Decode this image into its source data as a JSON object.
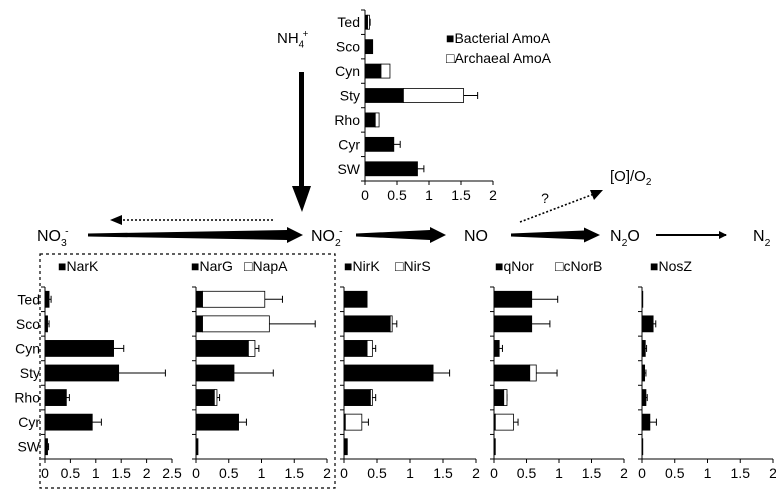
{
  "legend_marks": {
    "filled": "■",
    "open": "□"
  },
  "pathway": {
    "species": [
      {
        "main": "NO",
        "sub": "3",
        "sup": "-"
      },
      {
        "main": "NO",
        "sub": "2",
        "sup": "-"
      },
      {
        "main": "NO",
        "sub": "",
        "sup": ""
      },
      {
        "main": "N",
        "sub": "2",
        "sup": "",
        "tail": "O"
      },
      {
        "main": "N",
        "sub": "2",
        "sup": ""
      }
    ],
    "nh4": {
      "main": "NH",
      "sub": "4",
      "sup": "+"
    },
    "oxygen_label": "[O]/O",
    "oxygen_sub": "2",
    "question": "?"
  },
  "chart_data": [
    {
      "id": "amoA",
      "type": "bar",
      "orientation": "horizontal",
      "stacked": true,
      "categories": [
        "Ted",
        "Sco",
        "Cyn",
        "Sty",
        "Rho",
        "Cyr",
        "SW"
      ],
      "series": [
        {
          "name": "Bacterial AmoA",
          "fill": "#000000",
          "values": [
            0.04,
            0.12,
            0.25,
            0.6,
            0.16,
            0.45,
            0.82
          ],
          "err": [
            0.04,
            0,
            0.06,
            0.22,
            0.05,
            0.1,
            0.1
          ]
        },
        {
          "name": "Archaeal AmoA",
          "fill": "#ffffff",
          "values": [
            0.03,
            0,
            0.14,
            0.94,
            0.06,
            0,
            0
          ],
          "err": [
            0,
            0,
            0,
            0.22,
            0,
            0,
            0
          ]
        }
      ],
      "xlim": [
        0,
        2
      ],
      "ticks": [
        "0",
        "0.5",
        "1",
        "1.5",
        "2"
      ],
      "legend": "top-right"
    },
    {
      "id": "nark",
      "type": "bar",
      "orientation": "horizontal",
      "stacked": true,
      "categories": [
        "Ted",
        "Sco",
        "Cyn",
        "Sty",
        "Rho",
        "Cyr",
        "SW"
      ],
      "series": [
        {
          "name": "NarK",
          "fill": "#000000",
          "values": [
            0.08,
            0.05,
            1.35,
            1.45,
            0.42,
            0.93,
            0.05
          ],
          "err": [
            0.04,
            0.03,
            0.2,
            0.92,
            0.06,
            0.18,
            0.02
          ]
        }
      ],
      "xlim": [
        0,
        2.5
      ],
      "ticks": [
        "0",
        "0.5",
        "1",
        "1.5",
        "2",
        "2.5"
      ],
      "legend": "top"
    },
    {
      "id": "narg",
      "type": "bar",
      "orientation": "horizontal",
      "stacked": true,
      "categories": [
        "Ted",
        "Sco",
        "Cyn",
        "Sty",
        "Rho",
        "Cyr",
        "SW"
      ],
      "series": [
        {
          "name": "NarG",
          "fill": "#000000",
          "values": [
            0.1,
            0.1,
            0.8,
            0.58,
            0.28,
            0.65,
            0.03
          ],
          "err": [
            0,
            0,
            0,
            0.6,
            0,
            0.12,
            0
          ]
        },
        {
          "name": "NapA",
          "fill": "#ffffff",
          "values": [
            0.95,
            1.02,
            0.1,
            0,
            0.04,
            0,
            0
          ],
          "err": [
            0.27,
            0.7,
            0.06,
            0,
            0.04,
            0,
            0
          ]
        }
      ],
      "xlim": [
        0,
        2
      ],
      "ticks": [
        "0",
        "0.5",
        "1",
        "1.5",
        "2"
      ],
      "legend": "top"
    },
    {
      "id": "nirk",
      "type": "bar",
      "orientation": "horizontal",
      "stacked": true,
      "categories": [
        "Ted",
        "Sco",
        "Cyn",
        "Sty",
        "Rho",
        "Cyr",
        "SW"
      ],
      "series": [
        {
          "name": "NirK",
          "fill": "#000000",
          "values": [
            0.35,
            0.7,
            0.35,
            1.35,
            0.4,
            0.02,
            0.05
          ],
          "err": [
            0,
            0.1,
            0,
            0.25,
            0.08,
            0,
            0
          ]
        },
        {
          "name": "NirS",
          "fill": "#ffffff",
          "values": [
            0,
            0.03,
            0.08,
            0,
            0.03,
            0.25,
            0
          ],
          "err": [
            0,
            0,
            0.05,
            0,
            0,
            0.1,
            0
          ]
        }
      ],
      "xlim": [
        0,
        2
      ],
      "ticks": [
        "0",
        "0.5",
        "1",
        "1.5",
        "2"
      ],
      "legend": "top"
    },
    {
      "id": "qnor",
      "type": "bar",
      "orientation": "horizontal",
      "stacked": true,
      "categories": [
        "Ted",
        "Sco",
        "Cyn",
        "Sty",
        "Rho",
        "Cyr",
        "SW"
      ],
      "series": [
        {
          "name": "qNor",
          "fill": "#000000",
          "values": [
            0.58,
            0.58,
            0.08,
            0.55,
            0.15,
            0.02,
            0.02
          ],
          "err": [
            0.4,
            0.28,
            0.05,
            0.42,
            0.05,
            0,
            0
          ]
        },
        {
          "name": "cNorB",
          "fill": "#ffffff",
          "values": [
            0,
            0,
            0,
            0.1,
            0.05,
            0.28,
            0
          ],
          "err": [
            0,
            0,
            0,
            0,
            0,
            0.07,
            0
          ]
        }
      ],
      "xlim": [
        0,
        2
      ],
      "ticks": [
        "0",
        "0.5",
        "1",
        "1.5",
        "2"
      ],
      "legend": "top"
    },
    {
      "id": "nosz",
      "type": "bar",
      "orientation": "horizontal",
      "stacked": true,
      "categories": [
        "Ted",
        "Sco",
        "Cyn",
        "Sty",
        "Rho",
        "Cyr",
        "SW"
      ],
      "series": [
        {
          "name": "NosZ",
          "fill": "#000000",
          "values": [
            0.01,
            0.17,
            0.05,
            0.04,
            0.06,
            0.12,
            0.01
          ],
          "err": [
            0,
            0.04,
            0.02,
            0.02,
            0.02,
            0.1,
            0
          ]
        }
      ],
      "xlim": [
        0,
        2
      ],
      "ticks": [
        "0",
        "0.5",
        "1",
        "1.5",
        "2"
      ],
      "legend": "top"
    }
  ]
}
